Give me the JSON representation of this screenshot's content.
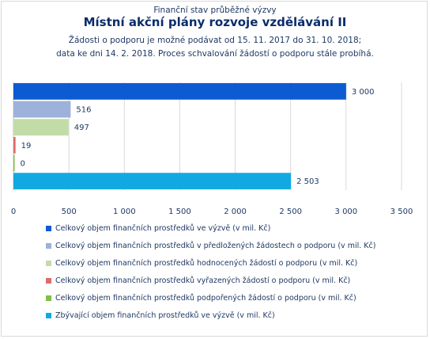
{
  "header": {
    "pretitle": "Finanční stav průběžné výzvy",
    "title": "Místní akční plány rozvoje vzdělávání II",
    "subtitle_line1": "Žádosti o podporu je možné podávat od 15. 11. 2017 do 31. 10. 2018;",
    "subtitle_line2": "data ke dni 14. 2. 2018. Proces schvalování žádostí o podporu stále probíhá."
  },
  "chart_data": {
    "type": "bar",
    "orientation": "horizontal",
    "xlim": [
      0,
      3500
    ],
    "x_ticks": [
      0,
      500,
      1000,
      1500,
      2000,
      2500,
      3000,
      3500
    ],
    "x_tick_labels": [
      "0",
      "500",
      "1 000",
      "1 500",
      "2 000",
      "2 500",
      "3 000",
      "3 500"
    ],
    "grid": "vertical",
    "legend_position": "bottom",
    "series": [
      {
        "name": "Celkový objem finančních prostředků ve výzvě (v mil. Kč)",
        "value": 3000,
        "label": "3 000",
        "color": "#0c5bd2"
      },
      {
        "name": "Celkový objem finančních prostředků v předložených žádostech o podporu (v mil. Kč)",
        "value": 516,
        "label": "516",
        "color": "#9cb2da"
      },
      {
        "name": "Celkový objem finančních prostředků hodnocených žádostí o podporu (v mil. Kč)",
        "value": 497,
        "label": "497",
        "color": "#c2dca8"
      },
      {
        "name": "Celkový objem finančních prostředků vyřazených žádostí o podporu (v mil. Kč)",
        "value": 19,
        "label": "19",
        "color": "#e06a6a"
      },
      {
        "name": "Celkový objem finančních prostředků podpořených žádostí o podporu (v mil. Kč)",
        "value": 0,
        "label": "0",
        "color": "#7fbf4d"
      },
      {
        "name": "Zbývající objem finančních prostředků ve výzvě (v mil. Kč)",
        "value": 2503,
        "label": "2 503",
        "color": "#12a9e3"
      }
    ]
  }
}
